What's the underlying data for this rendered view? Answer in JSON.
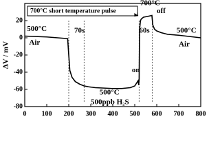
{
  "chart_data": {
    "type": "line",
    "y_label": "ΔV / mV",
    "x": [
      0,
      50,
      100,
      150,
      195,
      200,
      205,
      215,
      230,
      250,
      270,
      290,
      320,
      360,
      400,
      440,
      480,
      500,
      510,
      515,
      518,
      520,
      522,
      526,
      530,
      540,
      560,
      578,
      582,
      590,
      600,
      620,
      650,
      700,
      750,
      800
    ],
    "series": [
      {
        "name": "signal",
        "color": "#000000",
        "values": [
          2,
          1.5,
          1,
          0,
          -1,
          -20,
          -38,
          -46,
          -51,
          -54,
          -56,
          -57,
          -58,
          -58.5,
          -59,
          -59,
          -58,
          -56,
          -52,
          -50,
          -55,
          -48,
          10,
          20,
          22,
          24,
          25,
          26,
          15,
          10,
          8,
          6,
          4,
          3,
          1.5,
          0
        ]
      }
    ],
    "xlim": [
      0,
      800
    ],
    "ylim": [
      -80,
      40
    ],
    "xticks": [
      0,
      100,
      200,
      300,
      400,
      500,
      600,
      700,
      800
    ],
    "yticks": [
      -80,
      -60,
      -40,
      -20,
      0,
      20
    ],
    "annotations": [
      {
        "text": "500°C",
        "x": 10,
        "y": 10
      },
      {
        "text": "Air",
        "x": 20,
        "y": -6
      },
      {
        "text": "70s",
        "x": 225,
        "y": 8
      },
      {
        "text": "500°C",
        "x": 340,
        "y": -64
      },
      {
        "text": "500ppb H₂S",
        "x": 300,
        "y": -75
      },
      {
        "text": "on",
        "x": 487,
        "y": -38
      },
      {
        "text": "700°C",
        "x": 525,
        "y": 40
      },
      {
        "text": "off",
        "x": 600,
        "y": 31
      },
      {
        "text": "60s",
        "x": 520,
        "y": 8
      },
      {
        "text": "500°C",
        "x": 690,
        "y": 8
      },
      {
        "text": "Air",
        "x": 700,
        "y": -8
      }
    ],
    "box_note": "700°C short temperature pulse",
    "dashed_at": [
      200,
      270,
      520,
      580
    ]
  }
}
